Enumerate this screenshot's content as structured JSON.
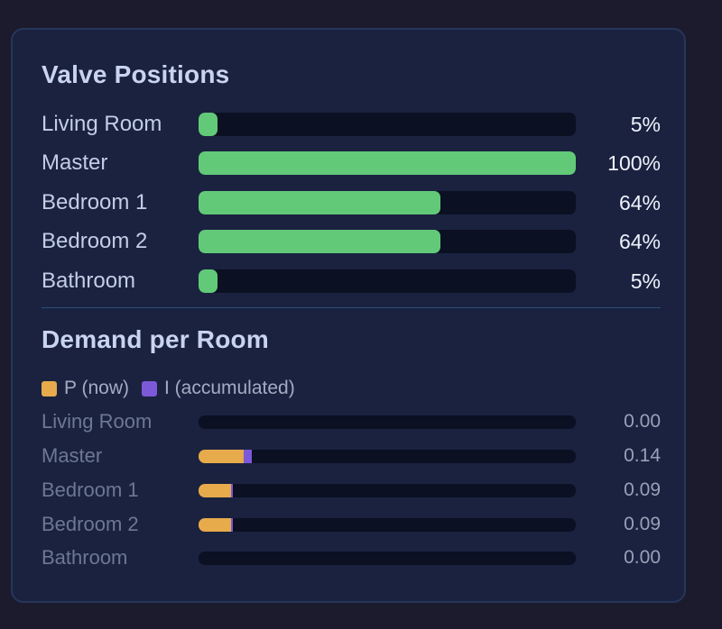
{
  "valve_section": {
    "title": "Valve Positions",
    "rows": [
      {
        "label": "Living Room",
        "percent": 5,
        "value_text": "5%"
      },
      {
        "label": "Master",
        "percent": 100,
        "value_text": "100%"
      },
      {
        "label": "Bedroom 1",
        "percent": 64,
        "value_text": "64%"
      },
      {
        "label": "Bedroom 2",
        "percent": 64,
        "value_text": "64%"
      },
      {
        "label": "Bathroom",
        "percent": 5,
        "value_text": "5%"
      }
    ]
  },
  "demand_section": {
    "title": "Demand per Room",
    "legend": {
      "p_label": "P (now)",
      "i_label": "I (accumulated)",
      "p_color": "#e7ab4c",
      "i_color": "#7c59d9"
    },
    "rows": [
      {
        "label": "Living Room",
        "p_fraction": 0.0,
        "i_fraction": 0.0,
        "value_text": "0.00"
      },
      {
        "label": "Master",
        "p_fraction": 0.12,
        "i_fraction": 0.022,
        "value_text": "0.14"
      },
      {
        "label": "Bedroom 1",
        "p_fraction": 0.085,
        "i_fraction": 0.005,
        "value_text": "0.09"
      },
      {
        "label": "Bedroom 2",
        "p_fraction": 0.085,
        "i_fraction": 0.007,
        "value_text": "0.09"
      },
      {
        "label": "Bathroom",
        "p_fraction": 0.0,
        "i_fraction": 0.0,
        "value_text": "0.00"
      }
    ]
  },
  "colors": {
    "valve_fill": "#62c979",
    "track": "#0b1022",
    "card_background": "#1a2240"
  }
}
